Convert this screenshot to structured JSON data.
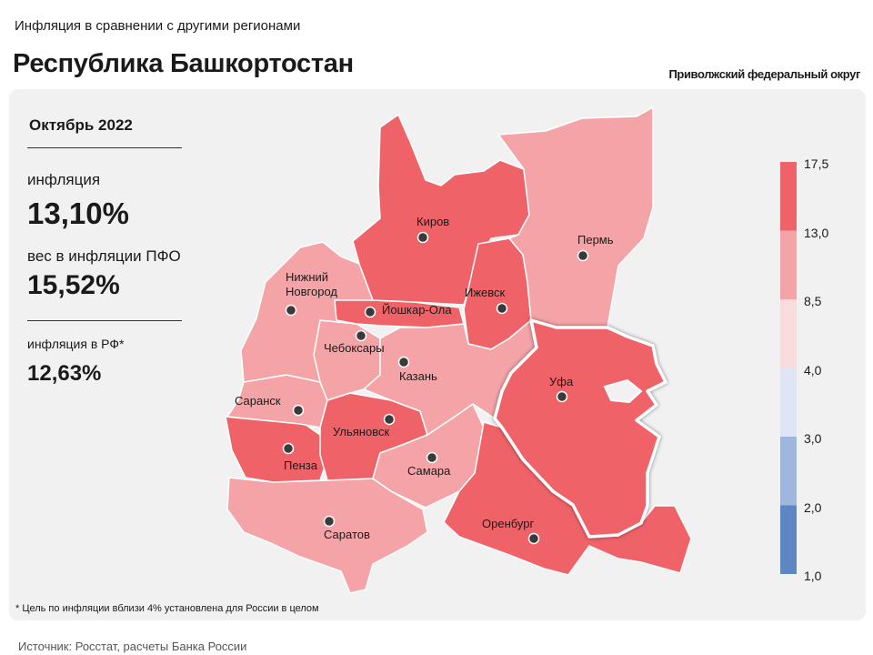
{
  "header": {
    "subtitle": "Инфляция в сравнении с другими регионами",
    "title": "Республика Башкортостан",
    "district": "Приволжский федеральный округ"
  },
  "stats": {
    "period": "Октябрь 2022",
    "inflation_label": "инфляция",
    "inflation_value": "13,10%",
    "weight_label": "вес в инфляции  ПФО",
    "weight_value": "15,52%",
    "rf_label": "инфляция  в РФ*",
    "rf_value": "12,63%"
  },
  "footnote": "* Цель по инфляции вблизи 4% установлена для России в целом",
  "source": "Источник: Росстат, расчеты Банка России",
  "legend": {
    "ticks": [
      "17,5",
      "13,0",
      "8,5",
      "4,0",
      "3,0",
      "2,0",
      "1,0"
    ],
    "colors": [
      "#ef6368",
      "#f4a4a7",
      "#f9dcdd",
      "#dfe5f4",
      "#9fb7dd",
      "#5d86c3"
    ]
  },
  "map": {
    "selected_region": "Уфа",
    "cities": [
      {
        "name": "Киров",
        "color": "#ef6368"
      },
      {
        "name": "Пермь",
        "color": "#f4a4a7"
      },
      {
        "name": "Нижний Новгород",
        "lines": [
          "Нижний",
          "Новгород"
        ],
        "color": "#f4a4a7"
      },
      {
        "name": "Йошкар-Ола",
        "color": "#ef6368"
      },
      {
        "name": "Ижевск",
        "color": "#ef6368"
      },
      {
        "name": "Чебоксары",
        "color": "#f4a4a7"
      },
      {
        "name": "Казань",
        "color": "#f4a4a7"
      },
      {
        "name": "Уфа",
        "color": "#ef6368"
      },
      {
        "name": "Саранск",
        "color": "#f4a4a7"
      },
      {
        "name": "Ульяновск",
        "color": "#ef6368"
      },
      {
        "name": "Пенза",
        "color": "#ef6368"
      },
      {
        "name": "Самара",
        "color": "#f4a4a7"
      },
      {
        "name": "Саратов",
        "color": "#f4a4a7"
      },
      {
        "name": "Оренбург",
        "color": "#ef6368"
      }
    ]
  }
}
